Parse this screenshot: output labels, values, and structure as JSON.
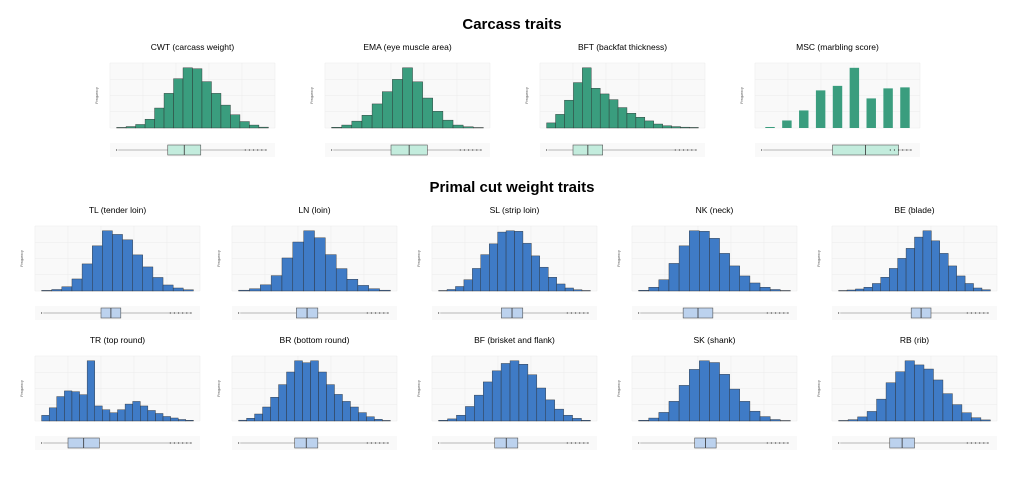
{
  "page": {
    "section_carcass": "Carcass traits",
    "section_primal": "Primal cut weight traits"
  },
  "colors": {
    "carcass_bar": "#3a9d7e",
    "carcass_box": "#c3ecdd",
    "primal_bar": "#3f7bc6",
    "primal_box": "#bcd2ee",
    "bar_edge": "#2b2b2b",
    "grid": "#ececec",
    "panel_bg": "#f9f9f9"
  },
  "chart_data": [
    {
      "id": "cwt",
      "type": "bar",
      "group": "carcass",
      "title": "CWT (carcass weight)",
      "ylabel": "Frequency",
      "values": [
        2,
        5,
        12,
        30,
        68,
        118,
        168,
        205,
        202,
        158,
        118,
        78,
        45,
        22,
        10,
        3
      ],
      "box": [
        0.35,
        0.55
      ]
    },
    {
      "id": "ema",
      "type": "bar",
      "group": "carcass",
      "title": "EMA (eye muscle area)",
      "ylabel": "Frequency",
      "values": [
        3,
        12,
        28,
        52,
        98,
        148,
        198,
        245,
        188,
        122,
        68,
        32,
        12,
        5,
        2
      ],
      "box": [
        0.4,
        0.62
      ]
    },
    {
      "id": "bft",
      "type": "bar",
      "group": "carcass",
      "title": "BFT (backfat thickness)",
      "ylabel": "Frequency",
      "values": [
        18,
        48,
        98,
        160,
        212,
        140,
        120,
        100,
        72,
        52,
        38,
        25,
        14,
        8,
        5,
        3,
        2
      ],
      "box": [
        0.2,
        0.38
      ]
    },
    {
      "id": "msc",
      "type": "bar",
      "group": "carcass",
      "title": "MSC (marbling score)",
      "ylabel": "Frequency",
      "values": [
        4,
        30,
        70,
        150,
        168,
        240,
        118,
        158,
        162
      ],
      "bar_gap": true,
      "box": [
        0.47,
        0.87
      ]
    },
    {
      "id": "tl",
      "type": "bar",
      "group": "primal",
      "title": "TL (tender loin)",
      "ylabel": "Frequency",
      "values": [
        2,
        5,
        14,
        40,
        90,
        150,
        200,
        188,
        170,
        120,
        80,
        45,
        20,
        10,
        4
      ],
      "box": [
        0.4,
        0.52
      ]
    },
    {
      "id": "ln",
      "type": "bar",
      "group": "primal",
      "title": "LN (loin)",
      "ylabel": "Frequency",
      "values": [
        3,
        8,
        22,
        55,
        118,
        175,
        215,
        190,
        130,
        80,
        42,
        20,
        8,
        3
      ],
      "box": [
        0.39,
        0.52
      ]
    },
    {
      "id": "sl",
      "type": "bar",
      "group": "primal",
      "title": "SL (strip loin)",
      "ylabel": "Frequency",
      "values": [
        2,
        6,
        18,
        45,
        90,
        145,
        188,
        235,
        240,
        238,
        190,
        140,
        95,
        55,
        28,
        12,
        5,
        2
      ],
      "box": [
        0.42,
        0.55
      ]
    },
    {
      "id": "nk",
      "type": "bar",
      "group": "primal",
      "title": "NK (neck)",
      "ylabel": "Frequency",
      "values": [
        3,
        15,
        45,
        110,
        180,
        240,
        238,
        210,
        150,
        100,
        60,
        32,
        15,
        6,
        2
      ],
      "box": [
        0.31,
        0.49
      ]
    },
    {
      "id": "be",
      "type": "bar",
      "group": "primal",
      "title": "BE (blade)",
      "ylabel": "Frequency",
      "values": [
        2,
        4,
        8,
        15,
        30,
        55,
        90,
        130,
        170,
        215,
        240,
        200,
        150,
        100,
        60,
        30,
        12,
        5
      ],
      "box": [
        0.48,
        0.6
      ]
    },
    {
      "id": "tr",
      "type": "bar",
      "group": "primal",
      "title": "TR (top round)",
      "ylabel": "Frequency",
      "values": [
        15,
        35,
        65,
        80,
        78,
        70,
        160,
        40,
        30,
        22,
        30,
        45,
        52,
        40,
        28,
        20,
        12,
        8,
        4,
        2
      ],
      "box": [
        0.2,
        0.39
      ]
    },
    {
      "id": "br",
      "type": "bar",
      "group": "primal",
      "title": "BR (bottom round)",
      "ylabel": "Frequency",
      "values": [
        3,
        10,
        25,
        50,
        85,
        130,
        175,
        215,
        208,
        215,
        175,
        130,
        95,
        70,
        50,
        30,
        15,
        6,
        2
      ],
      "box": [
        0.38,
        0.52
      ]
    },
    {
      "id": "bf",
      "type": "bar",
      "group": "primal",
      "title": "BF (brisket and flank)",
      "ylabel": "Frequency",
      "values": [
        3,
        8,
        22,
        55,
        98,
        148,
        190,
        218,
        228,
        215,
        175,
        125,
        80,
        45,
        22,
        10,
        3
      ],
      "box": [
        0.38,
        0.52
      ]
    },
    {
      "id": "sk",
      "type": "bar",
      "group": "primal",
      "title": "SK (shank)",
      "ylabel": "Frequency",
      "values": [
        3,
        12,
        35,
        80,
        145,
        210,
        245,
        238,
        190,
        130,
        80,
        40,
        18,
        6,
        2
      ],
      "box": [
        0.38,
        0.51
      ]
    },
    {
      "id": "rb",
      "type": "bar",
      "group": "primal",
      "title": "RB (rib)",
      "ylabel": "Frequency",
      "values": [
        2,
        5,
        15,
        35,
        80,
        140,
        180,
        220,
        205,
        190,
        150,
        100,
        60,
        30,
        12,
        4
      ],
      "box": [
        0.35,
        0.5
      ]
    }
  ]
}
